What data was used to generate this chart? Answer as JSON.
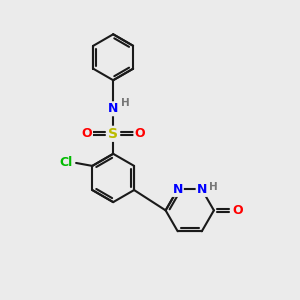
{
  "bg_color": "#ebebeb",
  "bond_color": "#1a1a1a",
  "bond_width": 1.5,
  "atom_colors": {
    "N": "#0000ff",
    "O": "#ff0000",
    "S": "#bbbb00",
    "Cl": "#00bb00",
    "H": "#777777",
    "C": "#1a1a1a"
  },
  "font_size_atom": 9,
  "font_size_small": 7.5
}
